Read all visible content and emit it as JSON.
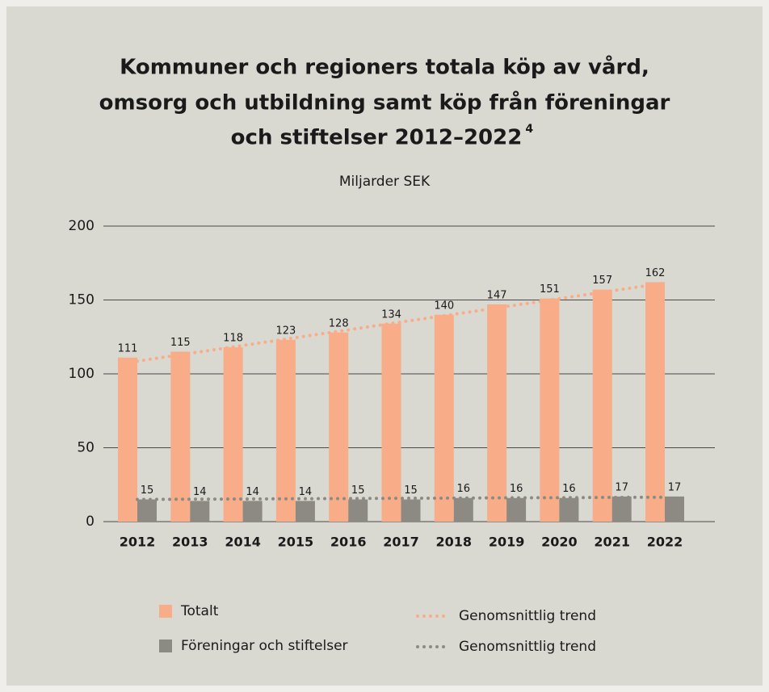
{
  "chart_data": {
    "type": "bar",
    "title_lines": [
      "Kommuner och regioners totala köp av vård,",
      "omsorg och utbildning samt köp från föreningar",
      "och stiftelser 2012–2022"
    ],
    "title_footnote": "4",
    "subtitle": "Miljarder SEK",
    "categories": [
      "2012",
      "2013",
      "2014",
      "2015",
      "2016",
      "2017",
      "2018",
      "2019",
      "2020",
      "2021",
      "2022"
    ],
    "series": [
      {
        "name": "Totalt",
        "type": "bar",
        "color": "#f8ad88",
        "values": [
          111,
          115,
          118,
          123,
          128,
          134,
          140,
          147,
          151,
          157,
          162
        ]
      },
      {
        "name": "Föreningar och stiftelser",
        "type": "bar",
        "color": "#8c8a82",
        "values": [
          15,
          14,
          14,
          14,
          15,
          15,
          16,
          16,
          16,
          17,
          17
        ]
      },
      {
        "name": "Genomsnittlig trend",
        "type": "line",
        "color": "#f8ad88",
        "values": [
          108.6,
          113.9,
          119.2,
          124.5,
          129.8,
          135.1,
          140.3,
          145.6,
          150.9,
          156.2,
          161.5
        ]
      },
      {
        "name": "Genomsnittlig trend",
        "type": "line",
        "color": "#8c8a82",
        "values": [
          15.0,
          15.2,
          15.3,
          15.5,
          15.6,
          15.8,
          15.9,
          16.1,
          16.2,
          16.4,
          16.5
        ]
      }
    ],
    "ylim": [
      0,
      200
    ],
    "yticks": [
      0,
      50,
      100,
      150,
      200
    ],
    "grid": true
  }
}
